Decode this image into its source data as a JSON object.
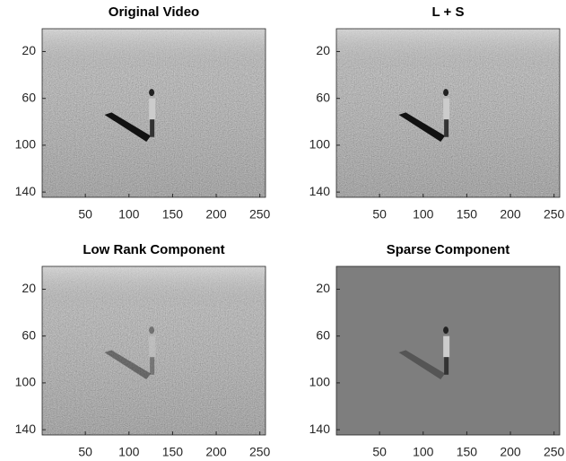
{
  "chart_data": [
    {
      "type": "image",
      "title": "Original Video",
      "xlim": [
        0.5,
        256.5
      ],
      "ylim": [
        0.5,
        144.5
      ],
      "xticks": [
        50,
        100,
        150,
        200,
        250
      ],
      "yticks": [
        20,
        60,
        100,
        140
      ]
    },
    {
      "type": "image",
      "title": "L + S",
      "xlim": [
        0.5,
        256.5
      ],
      "ylim": [
        0.5,
        144.5
      ],
      "xticks": [
        50,
        100,
        150,
        200,
        250
      ],
      "yticks": [
        20,
        60,
        100,
        140
      ]
    },
    {
      "type": "image",
      "title": "Low Rank Component",
      "xlim": [
        0.5,
        256.5
      ],
      "ylim": [
        0.5,
        144.5
      ],
      "xticks": [
        50,
        100,
        150,
        200,
        250
      ],
      "yticks": [
        20,
        60,
        100,
        140
      ]
    },
    {
      "type": "image",
      "title": "Sparse Component",
      "xlim": [
        0.5,
        256.5
      ],
      "ylim": [
        0.5,
        144.5
      ],
      "xticks": [
        50,
        100,
        150,
        200,
        250
      ],
      "yticks": [
        20,
        60,
        100,
        140
      ]
    }
  ]
}
